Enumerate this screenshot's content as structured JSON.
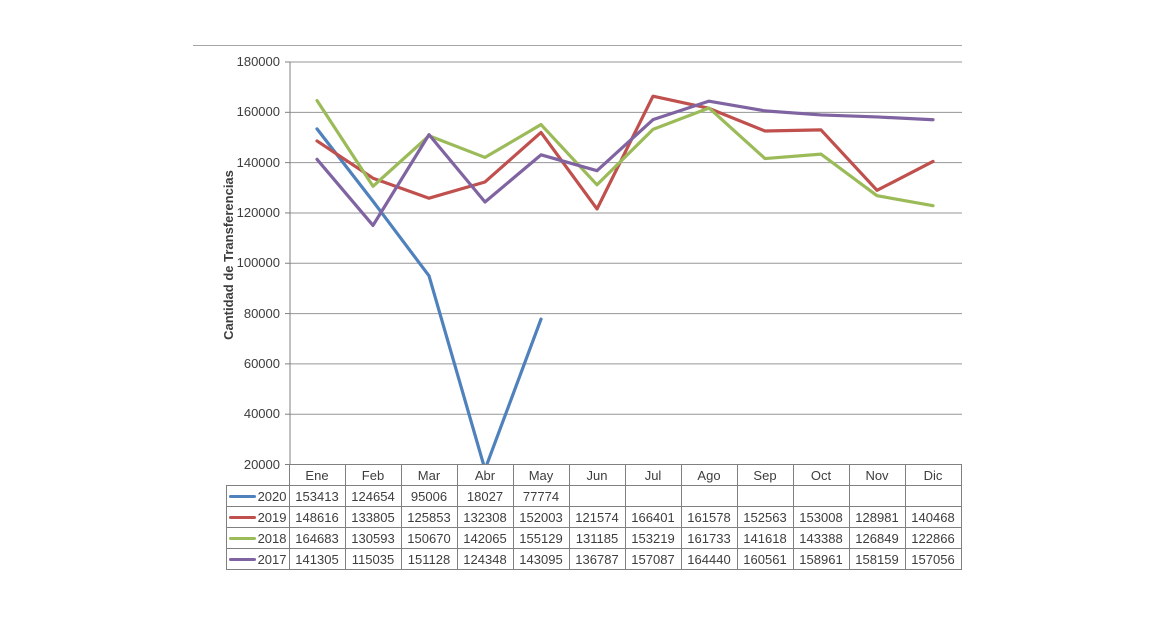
{
  "chart_data": {
    "type": "line",
    "title": "",
    "xlabel": "",
    "ylabel": "Cantidad de Transferencias",
    "ylim": [
      20000,
      180000
    ],
    "ytick_step": 20000,
    "yticks": [
      20000,
      40000,
      60000,
      80000,
      100000,
      120000,
      140000,
      160000,
      180000
    ],
    "grid": true,
    "legend_position": "data-table-left",
    "data_table": true,
    "categories": [
      "Ene",
      "Feb",
      "Mar",
      "Abr",
      "May",
      "Jun",
      "Jul",
      "Ago",
      "Sep",
      "Oct",
      "Nov",
      "Dic"
    ],
    "series": [
      {
        "name": "2020",
        "color": "#4f81bd",
        "values": [
          153413,
          124654,
          95006,
          18027,
          77774,
          null,
          null,
          null,
          null,
          null,
          null,
          null
        ]
      },
      {
        "name": "2019",
        "color": "#c0504d",
        "values": [
          148616,
          133805,
          125853,
          132308,
          152003,
          121574,
          166401,
          161578,
          152563,
          153008,
          128981,
          140468
        ]
      },
      {
        "name": "2018",
        "color": "#9bbb59",
        "values": [
          164683,
          130593,
          150670,
          142065,
          155129,
          131185,
          153219,
          161733,
          141618,
          143388,
          126849,
          122866
        ]
      },
      {
        "name": "2017",
        "color": "#8064a2",
        "values": [
          141305,
          115035,
          151128,
          124348,
          143095,
          136787,
          157087,
          164440,
          160561,
          158961,
          158159,
          157056
        ]
      }
    ],
    "colors": {
      "gridline": "#969696",
      "axis": "#808080",
      "table_border": "#808080",
      "text": "#3d3d3d",
      "chart_border": "#a6a6a6"
    }
  }
}
